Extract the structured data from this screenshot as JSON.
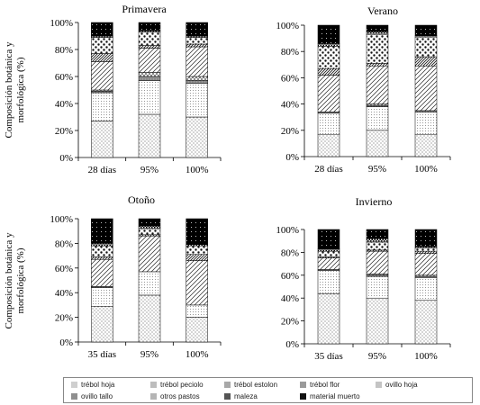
{
  "ylabel": "Composición botánica y morfológica (%)",
  "legend": [
    {
      "name": "trébol hoja",
      "key": "trebol_hoja",
      "swatch": "#cfcfcf"
    },
    {
      "name": "trébol peciolo",
      "key": "trebol_peciolo",
      "swatch": "#bdbdbd"
    },
    {
      "name": "trébol estolon",
      "key": "trebol_estolon",
      "swatch": "#a8a8a8"
    },
    {
      "name": "trébol flor",
      "key": "trebol_flor",
      "swatch": "#9a9a9a"
    },
    {
      "name": "ovillo hoja",
      "key": "ovillo_hoja",
      "swatch": "#c4c4c4"
    },
    {
      "name": "ovillo tallo",
      "key": "ovillo_tallo",
      "swatch": "#8f8f8f"
    },
    {
      "name": "otros pastos",
      "key": "otros_pastos",
      "swatch": "#b5b5b5"
    },
    {
      "name": "maleza",
      "key": "maleza",
      "swatch": "#555555"
    },
    {
      "name": "material muerto",
      "key": "material_muerto",
      "swatch": "#111111"
    }
  ],
  "chart_data": [
    {
      "type": "bar",
      "stacked": true,
      "title": "Primavera",
      "categories": [
        "28 días",
        "95%",
        "100%"
      ],
      "ylim": [
        0,
        100
      ],
      "yticks": [
        "0%",
        "20%",
        "40%",
        "60%",
        "80%",
        "100%"
      ],
      "series": [
        {
          "name": "trébol hoja",
          "values": [
            27,
            32,
            30
          ]
        },
        {
          "name": "trébol peciolo",
          "values": [
            21,
            25,
            25
          ]
        },
        {
          "name": "trébol estolon",
          "values": [
            1,
            3,
            2
          ]
        },
        {
          "name": "trébol flor",
          "values": [
            1,
            3,
            3
          ]
        },
        {
          "name": "ovillo hoja",
          "values": [
            21,
            18,
            22
          ]
        },
        {
          "name": "ovillo tallo",
          "values": [
            6,
            2,
            2
          ]
        },
        {
          "name": "otros pastos",
          "values": [
            12,
            10,
            5
          ]
        },
        {
          "name": "maleza",
          "values": [
            1,
            1,
            1
          ]
        },
        {
          "name": "material muerto",
          "values": [
            10,
            6,
            10
          ]
        }
      ]
    },
    {
      "type": "bar",
      "stacked": true,
      "title": "Verano",
      "categories": [
        "28 días",
        "95%",
        "100%"
      ],
      "ylim": [
        0,
        100
      ],
      "yticks": [
        "0%",
        "20%",
        "40%",
        "60%",
        "80%",
        "100%"
      ],
      "series": [
        {
          "name": "trébol hoja",
          "values": [
            17,
            20,
            17
          ]
        },
        {
          "name": "trébol peciolo",
          "values": [
            16,
            18,
            17
          ]
        },
        {
          "name": "trébol estolon",
          "values": [
            1,
            1,
            1
          ]
        },
        {
          "name": "trébol flor",
          "values": [
            0,
            1,
            0
          ]
        },
        {
          "name": "ovillo hoja",
          "values": [
            28,
            29,
            34
          ]
        },
        {
          "name": "ovillo tallo",
          "values": [
            5,
            2,
            7
          ]
        },
        {
          "name": "otros pastos",
          "values": [
            17,
            22,
            15
          ]
        },
        {
          "name": "maleza",
          "values": [
            2,
            2,
            1
          ]
        },
        {
          "name": "material muerto",
          "values": [
            14,
            5,
            8
          ]
        }
      ]
    },
    {
      "type": "bar",
      "stacked": true,
      "title": "Otoño",
      "categories": [
        "35 días",
        "95%",
        "100%"
      ],
      "ylim": [
        0,
        100
      ],
      "yticks": [
        "0%",
        "20%",
        "40%",
        "60%",
        "80%",
        "100%"
      ],
      "series": [
        {
          "name": "trébol hoja",
          "values": [
            29,
            38,
            20
          ]
        },
        {
          "name": "trébol peciolo",
          "values": [
            15,
            19,
            10
          ]
        },
        {
          "name": "trébol estolon",
          "values": [
            1,
            0,
            0
          ]
        },
        {
          "name": "trébol flor",
          "values": [
            0,
            0,
            0
          ]
        },
        {
          "name": "ovillo hoja",
          "values": [
            22,
            29,
            36
          ]
        },
        {
          "name": "ovillo tallo",
          "values": [
            2,
            1,
            5
          ]
        },
        {
          "name": "otros pastos",
          "values": [
            9,
            5,
            7
          ]
        },
        {
          "name": "maleza",
          "values": [
            2,
            2,
            1
          ]
        },
        {
          "name": "material muerto",
          "values": [
            20,
            6,
            21
          ]
        }
      ]
    },
    {
      "type": "bar",
      "stacked": true,
      "title": "Invierno",
      "categories": [
        "35 días",
        "95%",
        "100%"
      ],
      "ylim": [
        0,
        100
      ],
      "yticks": [
        "0%",
        "20%",
        "40%",
        "60%",
        "80%",
        "100%"
      ],
      "series": [
        {
          "name": "trébol hoja",
          "values": [
            44,
            40,
            38
          ]
        },
        {
          "name": "trébol peciolo",
          "values": [
            20,
            19,
            20
          ]
        },
        {
          "name": "trébol estolon",
          "values": [
            1,
            1,
            1
          ]
        },
        {
          "name": "trébol flor",
          "values": [
            0,
            1,
            1
          ]
        },
        {
          "name": "ovillo hoja",
          "values": [
            10,
            20,
            19
          ]
        },
        {
          "name": "ovillo tallo",
          "values": [
            1,
            1,
            2
          ]
        },
        {
          "name": "otros pastos",
          "values": [
            5,
            7,
            3
          ]
        },
        {
          "name": "maleza",
          "values": [
            2,
            3,
            1
          ]
        },
        {
          "name": "material muerto",
          "values": [
            17,
            8,
            15
          ]
        }
      ]
    }
  ]
}
